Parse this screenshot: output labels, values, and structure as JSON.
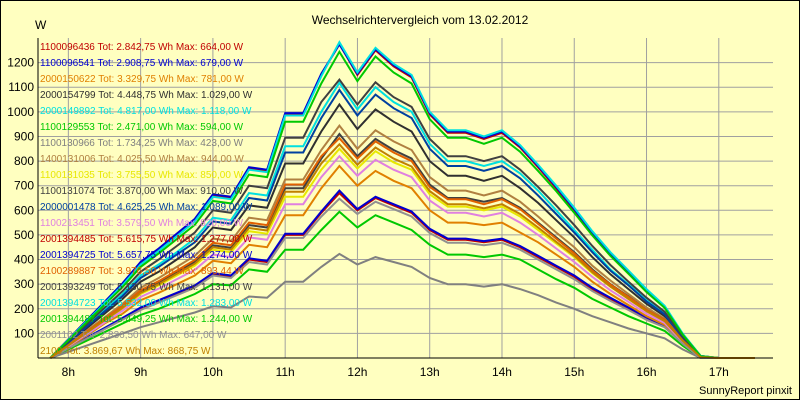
{
  "chart_data": {
    "type": "line",
    "title": "Wechselrichtervergleich vom 13.02.2012",
    "ylabel": "W",
    "xlabel": "",
    "ylim": [
      0,
      1300
    ],
    "yticks": [
      100,
      200,
      300,
      400,
      500,
      600,
      700,
      800,
      900,
      1000,
      1100,
      1200
    ],
    "x_tick_labels": [
      "8h",
      "9h",
      "10h",
      "11h",
      "12h",
      "13h",
      "14h",
      "15h",
      "16h",
      "17h"
    ],
    "x_tick_hours": [
      8,
      9,
      10,
      11,
      12,
      13,
      14,
      15,
      16,
      17
    ],
    "xlim": [
      7.58,
      17.75
    ],
    "grid": true,
    "legend_position": "top-left inside plot",
    "x": [
      7.75,
      8.0,
      8.25,
      8.5,
      8.75,
      9.0,
      9.25,
      9.5,
      9.75,
      10.0,
      10.25,
      10.5,
      10.75,
      11.0,
      11.25,
      11.5,
      11.75,
      12.0,
      12.25,
      12.5,
      12.75,
      13.0,
      13.25,
      13.5,
      13.75,
      14.0,
      14.25,
      14.5,
      14.75,
      15.0,
      15.25,
      15.5,
      15.75,
      16.0,
      16.25,
      16.5,
      16.75,
      17.0,
      17.25,
      17.5
    ],
    "series": [
      {
        "name": "1100096436",
        "legend": "1100096436 Tot: 2.842,75 Wh Max: 664,00 W",
        "color": "#c00000",
        "values": [
          0,
          40,
          80,
          120,
          160,
          200,
          230,
          260,
          290,
          340,
          330,
          400,
          390,
          500,
          500,
          590,
          670,
          600,
          650,
          620,
          590,
          520,
          480,
          480,
          470,
          480,
          450,
          410,
          370,
          330,
          280,
          240,
          200,
          160,
          130,
          60,
          0,
          0,
          0,
          0
        ]
      },
      {
        "name": "1100096541",
        "legend": "1100096541 Tot: 2.908,75 Wh Max: 679,00 W",
        "color": "#0000d0",
        "values": [
          0,
          42,
          82,
          122,
          163,
          205,
          235,
          265,
          295,
          345,
          335,
          405,
          395,
          505,
          505,
          595,
          680,
          605,
          655,
          625,
          595,
          525,
          485,
          485,
          475,
          485,
          455,
          415,
          375,
          335,
          285,
          245,
          205,
          165,
          132,
          62,
          0,
          0,
          0,
          0
        ]
      },
      {
        "name": "2000150622",
        "legend": "2000150622 Tot: 3.329,75 Wh Max: 781,00 W",
        "color": "#e08000",
        "values": [
          0,
          45,
          90,
          140,
          180,
          235,
          265,
          300,
          335,
          395,
          385,
          460,
          450,
          580,
          580,
          690,
          780,
          700,
          760,
          720,
          690,
          600,
          550,
          550,
          540,
          550,
          510,
          470,
          420,
          370,
          310,
          260,
          215,
          170,
          135,
          65,
          0,
          0,
          0,
          0
        ]
      },
      {
        "name": "2000154799",
        "legend": "2000154799 Tot: 4.448,75 Wh Max: 1.029,00 W",
        "color": "#303030",
        "values": [
          0,
          60,
          120,
          180,
          240,
          310,
          350,
          400,
          450,
          530,
          520,
          620,
          610,
          790,
          790,
          920,
          1030,
          930,
          1010,
          960,
          920,
          800,
          740,
          740,
          720,
          740,
          690,
          630,
          560,
          490,
          410,
          340,
          280,
          220,
          170,
          80,
          5,
          0,
          0,
          0
        ]
      },
      {
        "name": "2000149892",
        "legend": "2000149892 Tot: 4.817,00 Wh Max: 1.118,00 W",
        "color": "#00e0e0",
        "values": [
          0,
          65,
          130,
          195,
          260,
          335,
          380,
          430,
          485,
          570,
          560,
          670,
          660,
          860,
          860,
          1000,
          1118,
          1010,
          1100,
          1040,
          1000,
          870,
          800,
          800,
          780,
          800,
          750,
          680,
          600,
          520,
          440,
          360,
          300,
          235,
          180,
          85,
          5,
          0,
          0,
          0
        ]
      },
      {
        "name": "1100129553",
        "legend": "1100129553 Tot: 2.471,00 Wh Max: 594,00 W",
        "color": "#00c800",
        "values": [
          0,
          35,
          70,
          105,
          140,
          175,
          200,
          230,
          260,
          300,
          295,
          360,
          350,
          440,
          440,
          520,
          594,
          530,
          580,
          550,
          520,
          460,
          420,
          420,
          410,
          420,
          400,
          360,
          320,
          285,
          240,
          205,
          170,
          140,
          110,
          50,
          0,
          0,
          0,
          0
        ]
      },
      {
        "name": "1100130966",
        "legend": "1100130966 Tot: 1.734,25 Wh Max: 423,00 W",
        "color": "#808080",
        "values": [
          0,
          25,
          50,
          75,
          100,
          125,
          145,
          165,
          185,
          210,
          205,
          250,
          245,
          310,
          310,
          370,
          423,
          380,
          410,
          390,
          370,
          325,
          300,
          300,
          290,
          300,
          280,
          255,
          225,
          200,
          170,
          145,
          120,
          100,
          80,
          35,
          0,
          0,
          0,
          0
        ]
      },
      {
        "name": "1400131006",
        "legend": "1400131006 Tot: 4.025,50 Wh Max: 944,00 W",
        "color": "#b08040",
        "values": [
          0,
          55,
          110,
          165,
          220,
          285,
          325,
          370,
          415,
          485,
          475,
          570,
          560,
          725,
          725,
          845,
          944,
          850,
          925,
          880,
          845,
          735,
          680,
          680,
          660,
          680,
          635,
          575,
          510,
          450,
          375,
          315,
          260,
          205,
          160,
          75,
          5,
          0,
          0,
          0
        ]
      },
      {
        "name": "1100131035",
        "legend": "1100131035 Tot: 3.755,50 Wh Max: 850,00 W",
        "color": "#e8e800",
        "values": [
          0,
          50,
          100,
          150,
          200,
          260,
          295,
          335,
          375,
          440,
          430,
          515,
          505,
          655,
          655,
          765,
          850,
          770,
          840,
          795,
          765,
          665,
          615,
          615,
          600,
          615,
          575,
          520,
          465,
          410,
          345,
          290,
          240,
          190,
          150,
          70,
          3,
          0,
          0,
          0
        ]
      },
      {
        "name": "1100131074",
        "legend": "1100131074 Tot: 3.870,00 Wh Max: 910,00 W",
        "color": "#404040",
        "values": [
          0,
          52,
          104,
          156,
          208,
          270,
          305,
          348,
          390,
          458,
          448,
          540,
          530,
          690,
          690,
          810,
          910,
          820,
          890,
          845,
          810,
          705,
          650,
          650,
          635,
          650,
          610,
          550,
          490,
          430,
          360,
          300,
          250,
          195,
          155,
          72,
          4,
          0,
          0,
          0
        ]
      },
      {
        "name": "2000001478",
        "legend": "2000001478 Tot: 4.625,25 Wh Max: 1.089,00 W",
        "color": "#0040a0",
        "values": [
          0,
          63,
          126,
          189,
          252,
          325,
          370,
          420,
          470,
          555,
          545,
          650,
          640,
          835,
          835,
          975,
          1089,
          985,
          1070,
          1015,
          975,
          850,
          780,
          780,
          760,
          780,
          730,
          660,
          585,
          510,
          430,
          355,
          295,
          230,
          177,
          83,
          5,
          0,
          0,
          0
        ]
      },
      {
        "name": "1100213451",
        "legend": "1100213451 Tot: 3.579,50 Wh Max: 820,00 W",
        "color": "#e080e0",
        "values": [
          0,
          48,
          96,
          144,
          192,
          248,
          282,
          320,
          358,
          420,
          410,
          490,
          480,
          625,
          625,
          735,
          820,
          740,
          805,
          765,
          735,
          640,
          590,
          590,
          575,
          590,
          550,
          500,
          445,
          390,
          330,
          275,
          228,
          180,
          142,
          66,
          3,
          0,
          0,
          0
        ]
      },
      {
        "name": "2001394485",
        "legend": "2001394485 Tot: 5.615,75 Wh Max: 1.277,00 W",
        "color": "#c00000",
        "values": [
          0,
          75,
          150,
          225,
          300,
          385,
          440,
          500,
          560,
          660,
          650,
          770,
          760,
          990,
          990,
          1150,
          1277,
          1150,
          1250,
          1185,
          1140,
          990,
          915,
          915,
          890,
          915,
          855,
          775,
          690,
          600,
          505,
          420,
          345,
          270,
          205,
          95,
          8,
          0,
          0,
          0
        ]
      },
      {
        "name": "2001394725",
        "legend": "2001394725 Tot: 5.657,75 Wh Max: 1.274,00 W",
        "color": "#0000d0",
        "values": [
          0,
          76,
          152,
          228,
          304,
          390,
          445,
          505,
          565,
          665,
          655,
          775,
          765,
          995,
          995,
          1155,
          1274,
          1155,
          1255,
          1190,
          1145,
          995,
          920,
          920,
          895,
          920,
          860,
          780,
          695,
          605,
          510,
          425,
          350,
          275,
          210,
          98,
          8,
          0,
          0,
          0
        ]
      },
      {
        "name": "2100289887",
        "legend": "2100289887 Tot: 3.976,50 Wh Max: 893,44 W",
        "color": "#e06000",
        "values": [
          0,
          53,
          106,
          159,
          212,
          275,
          312,
          355,
          398,
          468,
          458,
          550,
          540,
          705,
          705,
          820,
          893,
          810,
          880,
          835,
          800,
          695,
          645,
          645,
          625,
          645,
          605,
          545,
          485,
          425,
          355,
          298,
          248,
          195,
          155,
          72,
          4,
          0,
          0,
          0
        ]
      },
      {
        "name": "2001393249",
        "legend": "2001393249 Tot: 5.130,75 Wh Max: 1.131,00 W",
        "color": "#404040",
        "values": [
          0,
          68,
          136,
          204,
          272,
          350,
          400,
          455,
          510,
          600,
          590,
          700,
          690,
          895,
          895,
          1040,
          1131,
          1030,
          1120,
          1060,
          1020,
          890,
          820,
          820,
          800,
          820,
          765,
          695,
          620,
          540,
          455,
          378,
          310,
          245,
          188,
          88,
          6,
          0,
          0,
          0
        ]
      },
      {
        "name": "2001394723",
        "legend": "2001394723 Tot: 5.532,00 Wh Max: 1.283,00 W",
        "color": "#00e0e0",
        "values": [
          0,
          74,
          148,
          222,
          296,
          380,
          435,
          495,
          555,
          655,
          645,
          765,
          755,
          985,
          985,
          1145,
          1283,
          1160,
          1260,
          1195,
          1150,
          1000,
          925,
          925,
          900,
          925,
          865,
          785,
          700,
          610,
          515,
          430,
          355,
          280,
          212,
          99,
          8,
          0,
          0,
          0
        ]
      },
      {
        "name": "2001394487",
        "legend": "2001394487 Tot: 5.449,25 Wh Max: 1.244,00 W",
        "color": "#00c800",
        "values": [
          0,
          72,
          144,
          216,
          288,
          370,
          425,
          483,
          541,
          638,
          628,
          745,
          735,
          960,
          960,
          1115,
          1244,
          1125,
          1225,
          1160,
          1115,
          970,
          895,
          895,
          870,
          895,
          838,
          760,
          678,
          590,
          498,
          415,
          342,
          268,
          204,
          95,
          7,
          0,
          0,
          0
        ]
      },
      {
        "name": "2001102",
        "legend": "2001102 Tot: 2.836,50 Wh Max: 647,00 W",
        "color": "#909090",
        "values": [
          0,
          39,
          78,
          117,
          156,
          195,
          225,
          255,
          285,
          335,
          325,
          390,
          380,
          488,
          488,
          575,
          647,
          585,
          635,
          605,
          575,
          508,
          468,
          468,
          458,
          468,
          440,
          400,
          360,
          320,
          272,
          232,
          195,
          155,
          125,
          58,
          0,
          0,
          0,
          0
        ]
      },
      {
        "name": "2100",
        "legend": "2100 Tot: 3.869,67 Wh Max: 868,75 W",
        "color": "#c08000",
        "values": [
          0,
          51,
          102,
          153,
          204,
          265,
          300,
          342,
          383,
          450,
          440,
          528,
          518,
          675,
          675,
          790,
          868,
          785,
          855,
          810,
          778,
          678,
          625,
          625,
          608,
          625,
          585,
          530,
          472,
          415,
          348,
          290,
          240,
          190,
          150,
          70,
          3,
          0,
          0,
          0
        ]
      }
    ]
  },
  "footer": "SunnyReport pinxit"
}
